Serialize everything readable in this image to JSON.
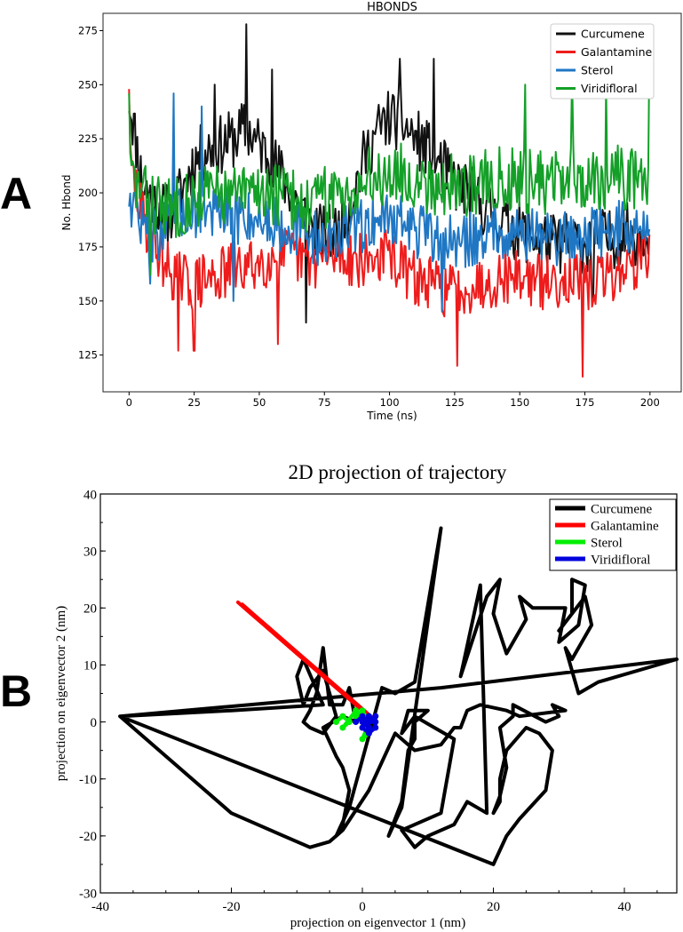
{
  "panels": {
    "a_label": "A",
    "b_label": "B"
  },
  "chart_data": [
    {
      "type": "line",
      "title": "HBONDS",
      "xlabel": "Time (ns)",
      "ylabel": "No. Hbond",
      "xlim": [
        -10,
        212
      ],
      "ylim": [
        108,
        283
      ],
      "xticks": [
        0,
        25,
        50,
        75,
        100,
        125,
        150,
        175,
        200
      ],
      "yticks": [
        125,
        150,
        175,
        200,
        225,
        250,
        275
      ],
      "legend_position": "top-right",
      "series": [
        {
          "name": "Curcumene",
          "color": "#111111",
          "x": [
            0,
            5,
            10,
            15,
            20,
            25,
            30,
            35,
            40,
            45,
            50,
            55,
            60,
            65,
            70,
            75,
            80,
            85,
            90,
            95,
            100,
            105,
            110,
            115,
            120,
            125,
            130,
            135,
            140,
            145,
            150,
            155,
            160,
            165,
            170,
            175,
            180,
            185,
            190,
            195,
            200
          ],
          "values": [
            245,
            205,
            195,
            190,
            200,
            215,
            220,
            222,
            225,
            230,
            222,
            215,
            205,
            195,
            185,
            180,
            182,
            195,
            215,
            228,
            235,
            232,
            225,
            220,
            212,
            205,
            200,
            195,
            190,
            185,
            182,
            180,
            178,
            176,
            178,
            176,
            180,
            178,
            182,
            180,
            185
          ],
          "noise_amplitude": 14,
          "peaks": [
            [
              45,
              278
            ],
            [
              33,
              250
            ],
            [
              55,
              257
            ],
            [
              104,
              262
            ],
            [
              117,
              262
            ],
            [
              68,
              140
            ],
            [
              178,
              150
            ]
          ]
        },
        {
          "name": "Galantamine",
          "color": "#ee1c1c",
          "x": [
            0,
            5,
            10,
            15,
            20,
            25,
            30,
            35,
            40,
            45,
            50,
            55,
            60,
            65,
            70,
            75,
            80,
            85,
            90,
            95,
            100,
            105,
            110,
            115,
            120,
            125,
            130,
            135,
            140,
            145,
            150,
            155,
            160,
            165,
            170,
            175,
            180,
            185,
            190,
            195,
            200
          ],
          "values": [
            215,
            190,
            175,
            165,
            160,
            158,
            160,
            162,
            165,
            165,
            168,
            170,
            172,
            170,
            168,
            170,
            172,
            170,
            168,
            170,
            172,
            165,
            160,
            158,
            156,
            155,
            157,
            158,
            160,
            162,
            162,
            160,
            158,
            160,
            162,
            155,
            160,
            162,
            165,
            168,
            175
          ],
          "noise_amplitude": 13,
          "peaks": [
            [
              0,
              248
            ],
            [
              19,
              127
            ],
            [
              25,
              127
            ],
            [
              57,
              130
            ],
            [
              126,
              120
            ],
            [
              174,
              115
            ]
          ]
        },
        {
          "name": "Sterol",
          "color": "#1f77c4",
          "x": [
            0,
            5,
            10,
            15,
            20,
            25,
            30,
            35,
            40,
            45,
            50,
            55,
            60,
            65,
            70,
            75,
            80,
            85,
            90,
            95,
            100,
            105,
            110,
            115,
            120,
            125,
            130,
            135,
            140,
            145,
            150,
            155,
            160,
            165,
            170,
            175,
            180,
            185,
            190,
            195,
            200
          ],
          "values": [
            200,
            185,
            180,
            185,
            190,
            192,
            192,
            190,
            188,
            190,
            188,
            187,
            185,
            183,
            180,
            178,
            180,
            182,
            185,
            188,
            190,
            186,
            183,
            180,
            178,
            176,
            178,
            180,
            182,
            183,
            182,
            181,
            180,
            179,
            180,
            181,
            182,
            183,
            184,
            182,
            185
          ],
          "noise_amplitude": 13,
          "peaks": [
            [
              17,
              246
            ],
            [
              28,
              240
            ],
            [
              8,
              158
            ],
            [
              40,
              150
            ],
            [
              120,
              145
            ]
          ]
        },
        {
          "name": "Viridifloral",
          "color": "#14a028",
          "x": [
            0,
            5,
            10,
            15,
            20,
            25,
            30,
            35,
            40,
            45,
            50,
            55,
            60,
            65,
            70,
            75,
            80,
            85,
            90,
            95,
            100,
            105,
            110,
            115,
            120,
            125,
            130,
            135,
            140,
            145,
            150,
            155,
            160,
            165,
            170,
            175,
            180,
            185,
            190,
            195,
            200
          ],
          "values": [
            210,
            200,
            195,
            192,
            195,
            198,
            200,
            200,
            198,
            200,
            202,
            200,
            198,
            196,
            195,
            198,
            200,
            202,
            205,
            208,
            210,
            208,
            206,
            205,
            204,
            203,
            204,
            205,
            206,
            207,
            206,
            205,
            205,
            206,
            207,
            206,
            207,
            208,
            207,
            206,
            208
          ],
          "noise_amplitude": 15,
          "peaks": [
            [
              0,
              246
            ],
            [
              200,
              267
            ],
            [
              170,
              255
            ],
            [
              183,
              250
            ],
            [
              152,
              250
            ],
            [
              8,
              162
            ]
          ]
        }
      ]
    },
    {
      "type": "line",
      "title": "2D projection of trajectory",
      "xlabel": "projection on eigenvector 1 (nm)",
      "ylabel": "projection on eigenvector 2 (nm)",
      "xlim": [
        -40,
        48
      ],
      "ylim": [
        -30,
        40
      ],
      "xticks": [
        -40,
        -20,
        0,
        20,
        40
      ],
      "yticks": [
        -30,
        -20,
        -10,
        0,
        10,
        20,
        30,
        40
      ],
      "legend_position": "top-right",
      "series": [
        {
          "name": "Curcumene",
          "color": "#000000",
          "points": [
            [
              -9,
              0
            ],
            [
              -8,
              2
            ],
            [
              -7,
              5
            ],
            [
              -6,
              13
            ],
            [
              -5,
              3
            ],
            [
              -3,
              3
            ],
            [
              -2,
              6
            ],
            [
              -1,
              0
            ],
            [
              -3,
              1
            ],
            [
              -6,
              -1
            ],
            [
              -4,
              -6
            ],
            [
              -3,
              -8
            ],
            [
              -2,
              -12
            ],
            [
              -3,
              -18
            ],
            [
              -4,
              -20
            ],
            [
              -2,
              -15
            ],
            [
              3,
              6
            ],
            [
              5,
              5
            ],
            [
              8,
              7
            ],
            [
              12,
              34
            ],
            [
              6,
              -15
            ],
            [
              4,
              -20
            ],
            [
              5,
              -17
            ],
            [
              6,
              -14
            ],
            [
              7,
              -5
            ],
            [
              8,
              -3
            ],
            [
              8,
              0
            ],
            [
              10,
              2
            ],
            [
              7,
              2
            ],
            [
              6,
              -2
            ],
            [
              8,
              1
            ],
            [
              11,
              -1
            ],
            [
              14,
              -3
            ],
            [
              12,
              -16
            ],
            [
              6,
              -19
            ],
            [
              8,
              -22
            ],
            [
              10,
              -20
            ],
            [
              14,
              -18
            ],
            [
              16,
              -14
            ],
            [
              19,
              -16
            ],
            [
              18,
              24
            ],
            [
              15,
              8
            ],
            [
              19,
              22
            ],
            [
              21,
              25
            ],
            [
              20,
              19
            ],
            [
              22,
              12
            ],
            [
              25,
              18
            ],
            [
              24,
              22
            ],
            [
              26,
              20
            ],
            [
              31,
              20
            ],
            [
              30,
              14
            ],
            [
              33,
              17
            ],
            [
              34,
              24
            ],
            [
              32,
              25
            ],
            [
              32,
              19
            ],
            [
              30,
              16
            ],
            [
              34,
              22
            ],
            [
              35,
              17
            ],
            [
              32,
              11
            ],
            [
              31,
              13
            ],
            [
              33,
              5
            ],
            [
              36,
              7
            ],
            [
              48,
              11
            ],
            [
              12,
              6
            ],
            [
              -37,
              1
            ],
            [
              20,
              -25
            ],
            [
              22,
              -20
            ],
            [
              24,
              -17
            ],
            [
              28,
              -12
            ],
            [
              29,
              -5
            ],
            [
              27,
              -2
            ],
            [
              25,
              -1
            ],
            [
              22,
              -5
            ],
            [
              21,
              -10
            ],
            [
              21,
              -14
            ],
            [
              20,
              -16
            ],
            [
              21,
              -13
            ],
            [
              22,
              -8
            ],
            [
              21,
              -1
            ],
            [
              23,
              1
            ],
            [
              23,
              3
            ],
            [
              28,
              0
            ],
            [
              30,
              1
            ],
            [
              29,
              3
            ],
            [
              31,
              2
            ],
            [
              24,
              1
            ],
            [
              22,
              2
            ],
            [
              18,
              3
            ],
            [
              16,
              2
            ],
            [
              15,
              -1
            ],
            [
              14,
              -1
            ],
            [
              12,
              -4
            ],
            [
              8,
              -5
            ],
            [
              5,
              -2
            ],
            [
              3,
              -7
            ],
            [
              1,
              -12
            ],
            [
              -3,
              -19
            ],
            [
              -5,
              -21
            ],
            [
              -8,
              -22
            ],
            [
              -12,
              -20
            ],
            [
              -20,
              -16
            ],
            [
              -37,
              1
            ],
            [
              -20,
              2
            ],
            [
              -6,
              3
            ],
            [
              -9,
              11
            ],
            [
              -10,
              8
            ],
            [
              -9,
              3
            ],
            [
              -8,
              6
            ],
            [
              -6,
              9
            ],
            [
              -5,
              5
            ],
            [
              -4,
              1
            ],
            [
              -6,
              -2
            ],
            [
              -8,
              -1
            ],
            [
              -9,
              0
            ]
          ]
        },
        {
          "name": "Galantamine",
          "color": "#ff0000",
          "points": [
            [
              -19,
              21
            ],
            [
              -18,
              20
            ],
            [
              -17,
              19
            ],
            [
              -16,
              18
            ],
            [
              -15,
              17
            ],
            [
              -13,
              15
            ],
            [
              -11,
              13
            ],
            [
              -9,
              11
            ],
            [
              -7,
              9
            ],
            [
              -5,
              7
            ],
            [
              -3,
              5
            ],
            [
              -2,
              4
            ],
            [
              0,
              2
            ],
            [
              1,
              1
            ]
          ]
        },
        {
          "name": "Sterol",
          "color": "#00ee00",
          "points": [
            [
              -4,
              0
            ],
            [
              -3,
              1
            ],
            [
              -2,
              0
            ],
            [
              -3,
              -1
            ],
            [
              -1,
              2
            ],
            [
              0,
              1
            ],
            [
              1,
              -2
            ],
            [
              0,
              -3
            ],
            [
              1,
              0
            ],
            [
              0,
              2
            ],
            [
              -1,
              1
            ],
            [
              1,
              1
            ],
            [
              0,
              -1
            ]
          ]
        },
        {
          "name": "Viridifloral",
          "color": "#0000dd",
          "points": [
            [
              -1,
              0
            ],
            [
              0,
              1
            ],
            [
              1,
              0
            ],
            [
              2,
              1
            ],
            [
              2,
              -1
            ],
            [
              1,
              -2
            ],
            [
              0,
              -1
            ],
            [
              1,
              1
            ],
            [
              2,
              0
            ],
            [
              0,
              0
            ],
            [
              1,
              -1
            ]
          ]
        }
      ]
    }
  ]
}
